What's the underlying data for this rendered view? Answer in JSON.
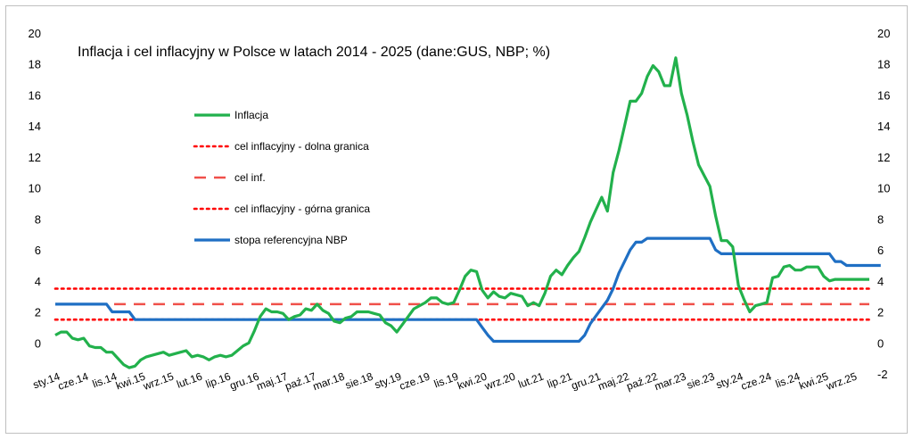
{
  "chart_data": {
    "type": "line",
    "title": "Inflacja i cel inflacyjny w Polsce w latach 2014 - 2025 (dane:GUS, NBP; %)",
    "xlabel": "",
    "ylabel": "",
    "ylim": [
      -2,
      20
    ],
    "y_ticks": [
      "-2",
      "0",
      "2",
      "4",
      "6",
      "8",
      "10",
      "12",
      "14",
      "16",
      "18",
      "20"
    ],
    "y_ticks_left": [
      "0",
      "2",
      "4",
      "6",
      "8",
      "10",
      "12",
      "14",
      "16",
      "18",
      "20"
    ],
    "y_ticks_right": [
      "-2",
      "0",
      "2",
      "4",
      "6",
      "8",
      "10",
      "12",
      "14",
      "16",
      "18",
      "20"
    ],
    "x_tick_labels": [
      "sty.14",
      "cze.14",
      "lis.14",
      "kwi.15",
      "wrz.15",
      "lut.16",
      "lip.16",
      "gru.16",
      "maj.17",
      "paź.17",
      "mar.18",
      "sie.18",
      "sty.19",
      "cze.19",
      "lis.19",
      "kwi.20",
      "wrz.20",
      "lut.21",
      "lip.21",
      "gru.21",
      "maj.22",
      "paź.22",
      "mar.23",
      "sie.23",
      "sty.24",
      "cze.24",
      "lis.24",
      "kwi.25",
      "wrz.25"
    ],
    "x_tick_every_months": 5,
    "n_months": 144,
    "legend_position": "left",
    "grid": false,
    "series": [
      {
        "name": "Inflacja",
        "color": "#22b14c",
        "style": "solid",
        "values": [
          0.5,
          0.7,
          0.7,
          0.3,
          0.2,
          0.3,
          -0.2,
          -0.3,
          -0.3,
          -0.6,
          -0.6,
          -1.0,
          -1.4,
          -1.6,
          -1.5,
          -1.1,
          -0.9,
          -0.8,
          -0.7,
          -0.6,
          -0.8,
          -0.7,
          -0.6,
          -0.5,
          -0.9,
          -0.8,
          -0.9,
          -1.1,
          -0.9,
          -0.8,
          -0.9,
          -0.8,
          -0.5,
          -0.2,
          0.0,
          0.8,
          1.7,
          2.2,
          2.0,
          2.0,
          1.9,
          1.5,
          1.7,
          1.8,
          2.2,
          2.1,
          2.5,
          2.1,
          1.9,
          1.4,
          1.3,
          1.6,
          1.7,
          2.0,
          2.0,
          2.0,
          1.9,
          1.8,
          1.3,
          1.1,
          0.7,
          1.2,
          1.7,
          2.2,
          2.4,
          2.6,
          2.9,
          2.9,
          2.6,
          2.5,
          2.6,
          3.4,
          4.3,
          4.7,
          4.6,
          3.4,
          2.9,
          3.3,
          3.0,
          2.9,
          3.2,
          3.1,
          3.0,
          2.4,
          2.6,
          2.4,
          3.2,
          4.3,
          4.7,
          4.4,
          5.0,
          5.5,
          5.9,
          6.8,
          7.8,
          8.6,
          9.4,
          8.5,
          11.0,
          12.4,
          14.0,
          15.6,
          15.6,
          16.1,
          17.2,
          17.9,
          17.5,
          16.6,
          16.6,
          18.4,
          16.1,
          14.7,
          13.0,
          11.5,
          10.8,
          10.1,
          8.2,
          6.6,
          6.6,
          6.2,
          3.7,
          2.8,
          2.0,
          2.4,
          2.5,
          2.6,
          4.2,
          4.3,
          4.9,
          5.0,
          4.7,
          4.7,
          4.9,
          4.9,
          4.9,
          4.3,
          4.0,
          4.1,
          4.1,
          4.1,
          4.1,
          4.1,
          4.1,
          4.1
        ]
      },
      {
        "name": "cel inflacyjny - dolna granica",
        "color": "#ff0000",
        "style": "dotted",
        "constant": 1.5
      },
      {
        "name": "cel inf.",
        "color": "#f0504a",
        "style": "dashed",
        "constant": 2.5
      },
      {
        "name": "cel inflacyjny - górna granica",
        "color": "#ff0000",
        "style": "dotted",
        "constant": 3.5
      },
      {
        "name": "stopa referencyjna NBP",
        "color": "#1f6fc4",
        "style": "solid",
        "values": [
          2.5,
          2.5,
          2.5,
          2.5,
          2.5,
          2.5,
          2.5,
          2.5,
          2.5,
          2.5,
          2.0,
          2.0,
          2.0,
          2.0,
          1.5,
          1.5,
          1.5,
          1.5,
          1.5,
          1.5,
          1.5,
          1.5,
          1.5,
          1.5,
          1.5,
          1.5,
          1.5,
          1.5,
          1.5,
          1.5,
          1.5,
          1.5,
          1.5,
          1.5,
          1.5,
          1.5,
          1.5,
          1.5,
          1.5,
          1.5,
          1.5,
          1.5,
          1.5,
          1.5,
          1.5,
          1.5,
          1.5,
          1.5,
          1.5,
          1.5,
          1.5,
          1.5,
          1.5,
          1.5,
          1.5,
          1.5,
          1.5,
          1.5,
          1.5,
          1.5,
          1.5,
          1.5,
          1.5,
          1.5,
          1.5,
          1.5,
          1.5,
          1.5,
          1.5,
          1.5,
          1.5,
          1.5,
          1.5,
          1.5,
          1.5,
          1.0,
          0.5,
          0.1,
          0.1,
          0.1,
          0.1,
          0.1,
          0.1,
          0.1,
          0.1,
          0.1,
          0.1,
          0.1,
          0.1,
          0.1,
          0.1,
          0.1,
          0.1,
          0.5,
          1.25,
          1.75,
          2.25,
          2.75,
          3.5,
          4.5,
          5.25,
          6.0,
          6.5,
          6.5,
          6.75,
          6.75,
          6.75,
          6.75,
          6.75,
          6.75,
          6.75,
          6.75,
          6.75,
          6.75,
          6.75,
          6.75,
          6.0,
          5.75,
          5.75,
          5.75,
          5.75,
          5.75,
          5.75,
          5.75,
          5.75,
          5.75,
          5.75,
          5.75,
          5.75,
          5.75,
          5.75,
          5.75,
          5.75,
          5.75,
          5.75,
          5.75,
          5.75,
          5.25,
          5.25,
          5.0,
          5.0,
          5.0,
          5.0,
          5.0,
          5.0,
          5.0
        ]
      }
    ]
  }
}
